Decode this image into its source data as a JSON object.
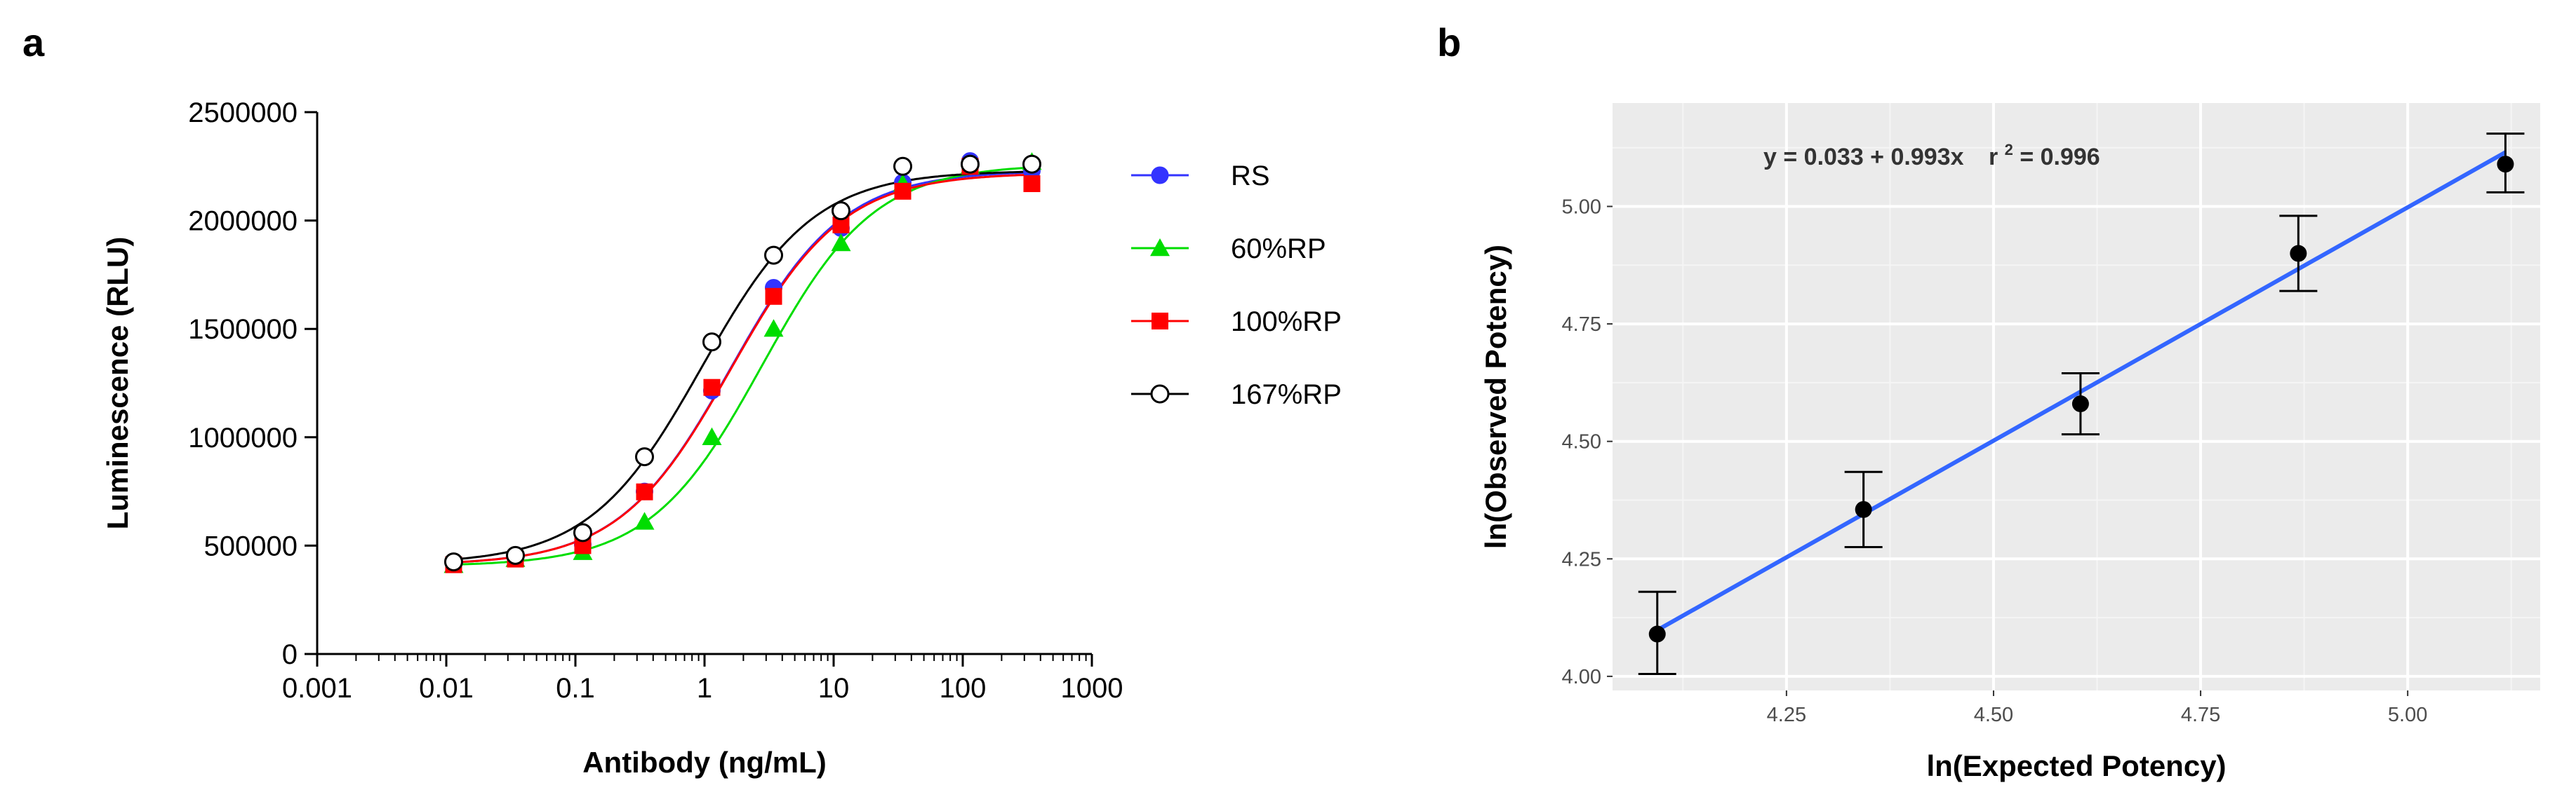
{
  "chart_data": [
    {
      "panel": "a",
      "type": "line",
      "xscale": "log",
      "xlabel": "Antibody (ng/mL)",
      "ylabel": "Luminescence (RLU)",
      "xlim": [
        0.001,
        1000
      ],
      "ylim": [
        0,
        2500000
      ],
      "x_ticks": [
        0.001,
        0.01,
        0.1,
        1,
        10,
        100,
        1000
      ],
      "x_tick_labels": [
        "0.001",
        "0.01",
        "0.1",
        "1",
        "10",
        "100",
        "1000"
      ],
      "y_ticks": [
        0,
        500000,
        1000000,
        1500000,
        2000000,
        2500000
      ],
      "y_tick_labels": [
        "0",
        "500000",
        "1000000",
        "1500000",
        "2000000",
        "2500000"
      ],
      "legend_position": "right",
      "x": [
        0.0114,
        0.0343,
        0.114,
        0.343,
        1.14,
        3.43,
        11.4,
        34.3,
        114,
        343
      ],
      "series": [
        {
          "name": "RS",
          "color": "#3333ff",
          "marker": "circle-filled",
          "values": [
            420000,
            445000,
            505000,
            750000,
            1215000,
            1690000,
            1965000,
            2175000,
            2275000,
            2230000
          ],
          "fit": {
            "bottom": 410000,
            "top": 2230000,
            "ec50": 1.6,
            "hill": 1.0
          }
        },
        {
          "name": "60%RP",
          "color": "#00dd00",
          "marker": "triangle-filled",
          "values": [
            410000,
            438000,
            470000,
            610000,
            1000000,
            1500000,
            1895000,
            2170000,
            2250000,
            2270000
          ],
          "fit": {
            "bottom": 405000,
            "top": 2260000,
            "ec50": 2.8,
            "hill": 1.0
          }
        },
        {
          "name": "100%RP",
          "color": "#ff0000",
          "marker": "square-filled",
          "values": [
            412000,
            438000,
            500000,
            748000,
            1230000,
            1650000,
            1980000,
            2135000,
            2250000,
            2170000
          ],
          "fit": {
            "bottom": 410000,
            "top": 2220000,
            "ec50": 1.6,
            "hill": 1.0
          }
        },
        {
          "name": "167%RP",
          "color": "#000000",
          "marker": "circle-open",
          "values": [
            425000,
            455000,
            560000,
            910000,
            1440000,
            1840000,
            2045000,
            2250000,
            2260000,
            2260000
          ],
          "fit": {
            "bottom": 415000,
            "top": 2230000,
            "ec50": 0.95,
            "hill": 1.0
          }
        }
      ]
    },
    {
      "panel": "b",
      "type": "scatter",
      "xlabel": "ln(Expected Potency)",
      "ylabel": "ln(Observed Potency)",
      "xlim": [
        4.04,
        5.16
      ],
      "ylim": [
        3.97,
        5.22
      ],
      "x_ticks": [
        4.25,
        4.5,
        4.75,
        5.0
      ],
      "x_tick_labels": [
        "4.25",
        "4.50",
        "4.75",
        "5.00"
      ],
      "y_ticks": [
        4.0,
        4.25,
        4.5,
        4.75,
        5.0
      ],
      "y_tick_labels": [
        "4.00",
        "4.25",
        "4.50",
        "4.75",
        "5.00"
      ],
      "background": "#ebebeb",
      "line_color": "#3366ff",
      "points": [
        {
          "x": 4.094,
          "y": 4.09,
          "err_low": 4.005,
          "err_high": 4.18
        },
        {
          "x": 4.343,
          "y": 4.355,
          "err_low": 4.275,
          "err_high": 4.435
        },
        {
          "x": 4.605,
          "y": 4.58,
          "err_low": 4.515,
          "err_high": 4.645
        },
        {
          "x": 4.868,
          "y": 4.9,
          "err_low": 4.82,
          "err_high": 4.98
        },
        {
          "x": 5.118,
          "y": 5.09,
          "err_low": 5.03,
          "err_high": 5.155
        }
      ],
      "fit": {
        "intercept": 0.033,
        "slope": 0.993,
        "x_range": [
          4.094,
          5.118
        ]
      },
      "annotation": {
        "eq": "y = 0.033 + 0.993x",
        "r_prefix": "r",
        "r_sup": "2",
        "r_value": " = 0.996"
      }
    }
  ]
}
